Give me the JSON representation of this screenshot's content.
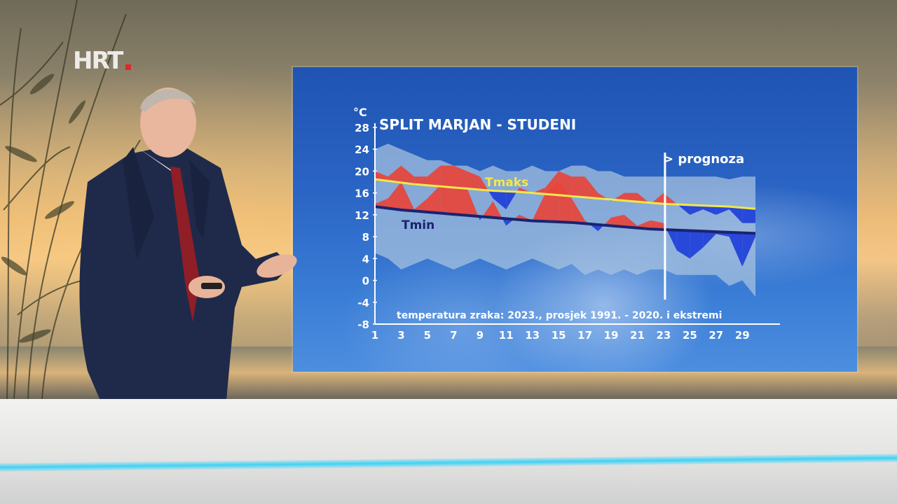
{
  "broadcast": {
    "logo_text": "HRT"
  },
  "chart_data": {
    "type": "area",
    "title": "SPLIT MARJAN - STUDENI",
    "unit_label": "°C",
    "caption": "temperatura zraka: 2023., prosjek 1991. - 2020. i ekstremi",
    "forecast_label": "> prognoza",
    "forecast_from_day": 23,
    "ylim": [
      -8,
      28
    ],
    "yticks": [
      28,
      24,
      20,
      16,
      12,
      8,
      4,
      0,
      -4,
      -8
    ],
    "xlim": [
      1,
      30
    ],
    "xticks": [
      1,
      3,
      5,
      7,
      9,
      11,
      13,
      15,
      17,
      19,
      21,
      23,
      25,
      27,
      29
    ],
    "x": [
      1,
      2,
      3,
      4,
      5,
      6,
      7,
      8,
      9,
      10,
      11,
      12,
      13,
      14,
      15,
      16,
      17,
      18,
      19,
      20,
      21,
      22,
      23,
      24,
      25,
      26,
      27,
      28,
      29,
      30
    ],
    "series": [
      {
        "name": "Tmaks",
        "role": "avg_max",
        "color": "#f2e84a",
        "values": [
          18.5,
          18.2,
          17.9,
          17.6,
          17.4,
          17.2,
          17.0,
          16.8,
          16.6,
          16.4,
          16.3,
          16.2,
          16.0,
          15.8,
          15.6,
          15.4,
          15.2,
          15.0,
          14.8,
          14.6,
          14.4,
          14.2,
          14.0,
          13.9,
          13.8,
          13.7,
          13.6,
          13.5,
          13.3,
          13.1
        ]
      },
      {
        "name": "Tmin",
        "role": "avg_min",
        "color": "#1a2370",
        "values": [
          13.5,
          13.2,
          12.9,
          12.7,
          12.5,
          12.3,
          12.1,
          11.9,
          11.7,
          11.5,
          11.3,
          11.1,
          10.9,
          10.8,
          10.7,
          10.6,
          10.4,
          10.2,
          10.0,
          9.8,
          9.6,
          9.4,
          9.3,
          9.2,
          9.1,
          9.0,
          8.9,
          8.8,
          8.7,
          8.6
        ]
      },
      {
        "role": "daily_max_2023",
        "values": [
          20,
          19,
          21,
          19,
          19,
          21,
          21,
          20,
          19,
          15,
          13,
          17,
          16,
          17,
          20,
          19,
          19,
          16,
          14.5,
          16,
          16,
          14,
          16,
          14,
          12,
          13,
          12,
          13,
          10.5,
          10.5
        ]
      },
      {
        "role": "daily_min_2023",
        "values": [
          14,
          15,
          18,
          13,
          15,
          17.5,
          17,
          17,
          11,
          14.5,
          10,
          12,
          11,
          16,
          18,
          15,
          11,
          9,
          11.5,
          12,
          10,
          11,
          10.5,
          5.5,
          4,
          6,
          8.5,
          8,
          2.5,
          8
        ]
      },
      {
        "role": "record_max",
        "values": [
          24,
          25,
          24,
          23,
          22,
          22,
          21,
          21,
          20,
          21,
          20,
          20,
          21,
          20,
          20,
          21,
          21,
          20,
          20,
          19,
          19,
          19,
          19,
          19,
          19,
          19,
          19,
          18.5,
          19,
          19
        ]
      },
      {
        "role": "record_min",
        "values": [
          5,
          4,
          2,
          3,
          4,
          3,
          2,
          3,
          4,
          3,
          2,
          3,
          4,
          3,
          2,
          3,
          1,
          2,
          1,
          2,
          1,
          2,
          2,
          1,
          1,
          1,
          1,
          -1,
          0,
          -3
        ]
      }
    ],
    "colors": {
      "above_average": "#e8443a",
      "below_average": "#1f3fd9",
      "extreme_band": "#a9c4df",
      "axis": "#ffffff"
    }
  }
}
